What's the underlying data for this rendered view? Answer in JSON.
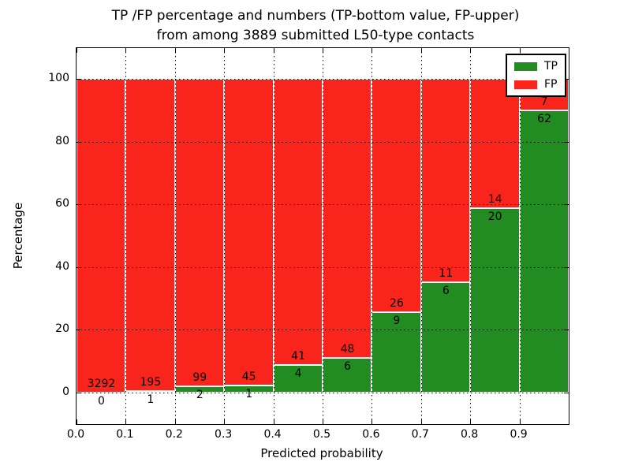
{
  "figure": {
    "title_line1": "TP /FP percentage and numbers (TP-bottom value, FP-upper)",
    "title_line2": "from among 3889 submitted L50-type contacts"
  },
  "legend": {
    "position": "upper right",
    "items": [
      {
        "label": "TP",
        "color": "#228b22"
      },
      {
        "label": "FP",
        "color": "#f9251c"
      }
    ]
  },
  "chart_data": {
    "type": "bar",
    "stacked": true,
    "normalized_to": 100,
    "title": "TP /FP percentage and numbers (TP-bottom value, FP-upper)\nfrom among 3889 submitted L50-type contacts",
    "xlabel": "Predicted probability",
    "ylabel": "Percentage",
    "total_submitted_contacts": 3889,
    "categories": [
      "0.0-0.1",
      "0.1-0.2",
      "0.2-0.3",
      "0.3-0.4",
      "0.4-0.5",
      "0.5-0.6",
      "0.6-0.7",
      "0.7-0.8",
      "0.8-0.9",
      "0.9-1.0"
    ],
    "x_tick_labels": [
      "0.0",
      "0.1",
      "0.2",
      "0.3",
      "0.4",
      "0.5",
      "0.6",
      "0.7",
      "0.8",
      "0.9"
    ],
    "y_ticks": [
      0,
      20,
      40,
      60,
      80,
      100
    ],
    "ylim": [
      -11,
      110
    ],
    "xlim": [
      0.0,
      1.0
    ],
    "grid": "dotted black, horizontal at y ticks and vertical at x ticks",
    "series": [
      {
        "name": "TP",
        "color": "#228b22",
        "counts": [
          0,
          1,
          2,
          1,
          4,
          6,
          9,
          6,
          20,
          62
        ]
      },
      {
        "name": "FP",
        "color": "#f9251c",
        "counts": [
          3292,
          195,
          99,
          45,
          41,
          48,
          26,
          11,
          14,
          7
        ]
      }
    ],
    "bar_value_labels": "FP count printed just above TP/FP boundary, TP count just below it",
    "tp_percent_heights": [
      0.0,
      0.51,
      1.98,
      2.17,
      8.89,
      11.11,
      25.71,
      35.29,
      58.82,
      89.86
    ]
  }
}
